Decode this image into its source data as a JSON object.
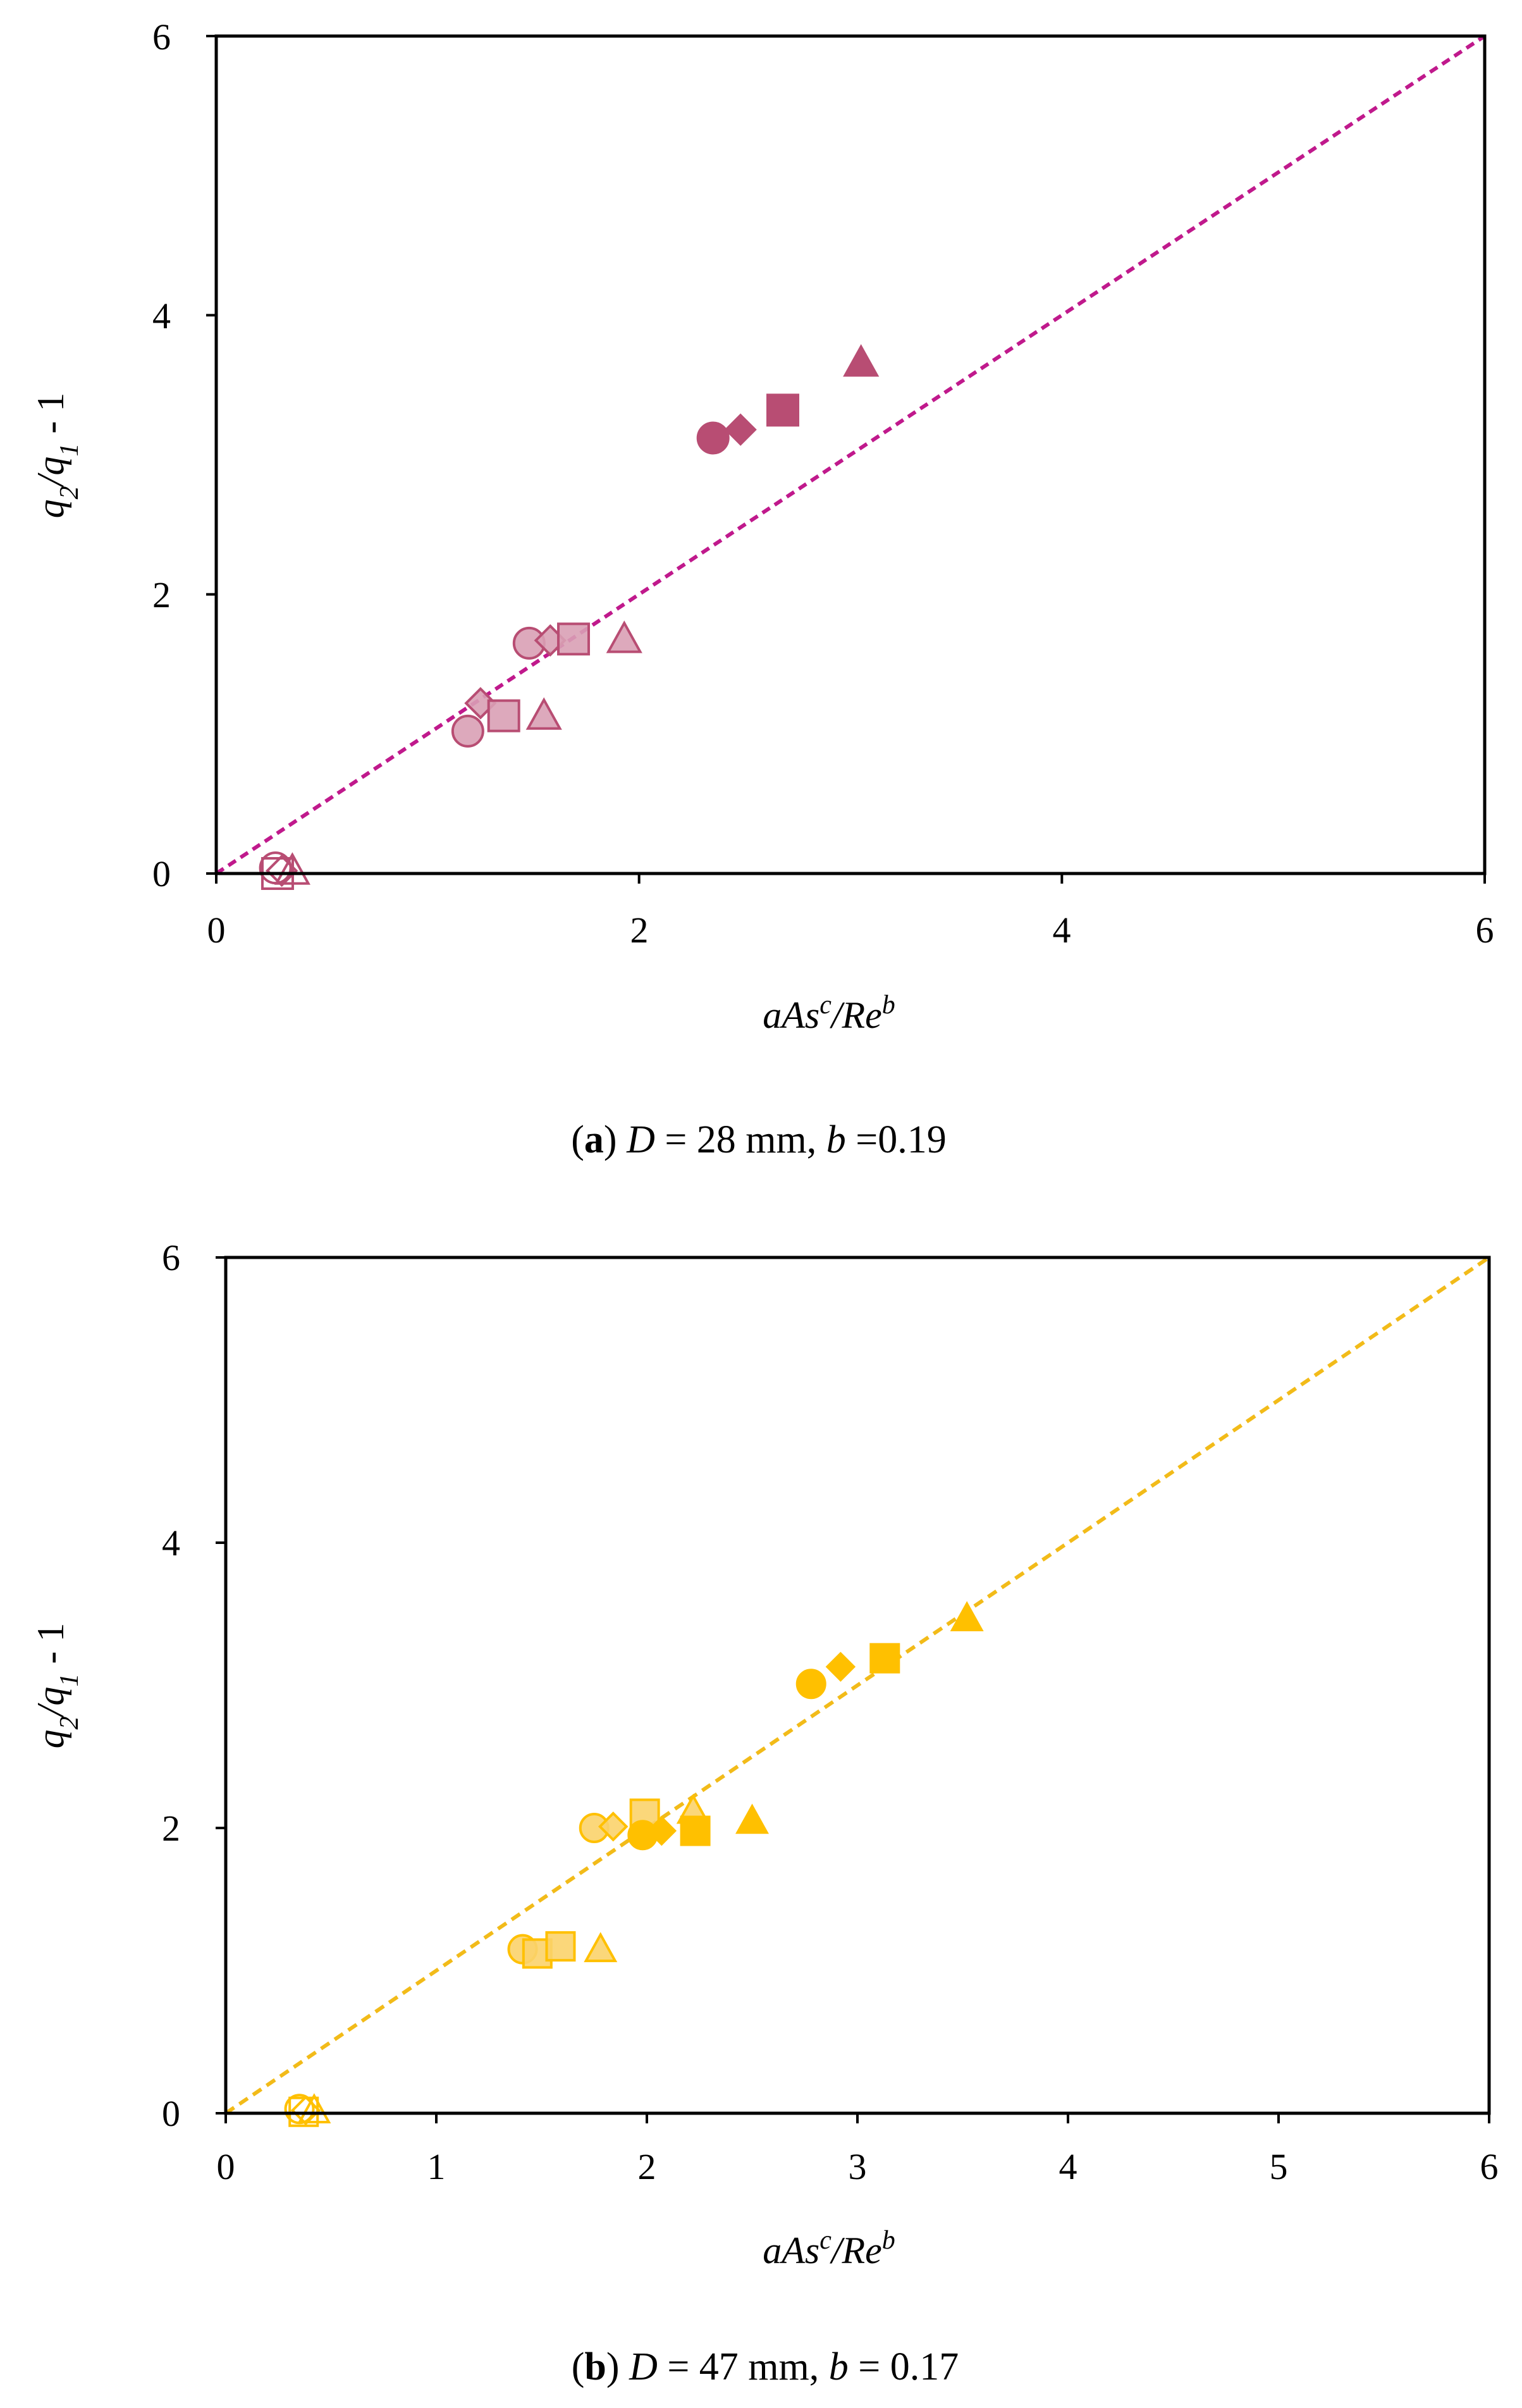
{
  "chart_data": [
    {
      "type": "scatter",
      "panel": "a",
      "caption": {
        "letter": "a",
        "d_value": "= 28 mm,",
        "b_value": "=0.19"
      },
      "xlabel": "aAs^c/Re^b",
      "ylabel": "q2/q1 - 1",
      "xlim": [
        0,
        6
      ],
      "ylim": [
        0,
        6
      ],
      "xticks": [
        "0",
        "2",
        "4",
        "6"
      ],
      "yticks": [
        "0",
        "2",
        "4",
        "6"
      ],
      "color_dark": "#b84d73",
      "color_light": "#d9a0b5",
      "fit_line": {
        "x": [
          0,
          6
        ],
        "y": [
          0,
          6
        ],
        "style": "dashed",
        "color": "#c0198c"
      },
      "series": [
        {
          "name": "hollow",
          "fill": "none",
          "points": [
            {
              "marker": "circle",
              "x": 0.28,
              "y": 0.04
            },
            {
              "marker": "square",
              "x": 0.29,
              "y": 0.0
            },
            {
              "marker": "diamond",
              "x": 0.31,
              "y": 0.02
            },
            {
              "marker": "triangle",
              "x": 0.36,
              "y": 0.02
            }
          ]
        },
        {
          "name": "light",
          "fill": "light",
          "points": [
            {
              "marker": "circle",
              "x": 1.19,
              "y": 1.02
            },
            {
              "marker": "diamond",
              "x": 1.25,
              "y": 1.22
            },
            {
              "marker": "square",
              "x": 1.36,
              "y": 1.13
            },
            {
              "marker": "triangle",
              "x": 1.55,
              "y": 1.13
            }
          ]
        },
        {
          "name": "medium",
          "fill": "light",
          "points": [
            {
              "marker": "circle",
              "x": 1.48,
              "y": 1.65
            },
            {
              "marker": "diamond",
              "x": 1.58,
              "y": 1.67
            },
            {
              "marker": "square",
              "x": 1.69,
              "y": 1.68
            },
            {
              "marker": "triangle",
              "x": 1.93,
              "y": 1.68
            }
          ]
        },
        {
          "name": "solid",
          "fill": "dark",
          "points": [
            {
              "marker": "circle",
              "x": 2.35,
              "y": 3.12
            },
            {
              "marker": "diamond",
              "x": 2.48,
              "y": 3.18
            },
            {
              "marker": "square",
              "x": 2.68,
              "y": 3.32
            },
            {
              "marker": "triangle",
              "x": 3.05,
              "y": 3.66
            }
          ]
        }
      ]
    },
    {
      "type": "scatter",
      "panel": "b",
      "caption": {
        "letter": "b",
        "d_value": "= 47 mm,",
        "b_value": "= 0.17"
      },
      "xlabel": "aAs^c/Re^b",
      "ylabel": "q2/q1 - 1",
      "xlim": [
        0,
        6
      ],
      "ylim": [
        0,
        6
      ],
      "xticks": [
        "0",
        "1",
        "2",
        "3",
        "4",
        "5",
        "6"
      ],
      "yticks": [
        "0",
        "2",
        "4",
        "6"
      ],
      "color_dark": "#ffc000",
      "color_light": "#fbd36b",
      "fit_line": {
        "x": [
          0,
          6
        ],
        "y": [
          0,
          6
        ],
        "style": "dashed",
        "color": "#f2bb19"
      },
      "series": [
        {
          "name": "hollow",
          "fill": "none",
          "points": [
            {
              "marker": "circle",
              "x": 0.35,
              "y": 0.03
            },
            {
              "marker": "square",
              "x": 0.37,
              "y": 0.01
            },
            {
              "marker": "diamond",
              "x": 0.38,
              "y": 0.02
            },
            {
              "marker": "triangle",
              "x": 0.42,
              "y": 0.02
            }
          ]
        },
        {
          "name": "light",
          "fill": "light",
          "points": [
            {
              "marker": "circle",
              "x": 1.41,
              "y": 1.15
            },
            {
              "marker": "square",
              "x": 1.48,
              "y": 1.12
            },
            {
              "marker": "square",
              "x": 1.59,
              "y": 1.17
            },
            {
              "marker": "triangle",
              "x": 1.78,
              "y": 1.15
            }
          ]
        },
        {
          "name": "medium",
          "fill": "light",
          "points": [
            {
              "marker": "circle",
              "x": 1.75,
              "y": 2.0
            },
            {
              "marker": "diamond",
              "x": 1.84,
              "y": 2.01
            },
            {
              "marker": "square",
              "x": 1.99,
              "y": 2.1
            },
            {
              "marker": "triangle",
              "x": 2.22,
              "y": 2.12
            }
          ]
        },
        {
          "name": "solid",
          "fill": "dark",
          "points": [
            {
              "marker": "circle",
              "x": 1.98,
              "y": 1.95
            },
            {
              "marker": "diamond",
              "x": 2.07,
              "y": 1.98
            },
            {
              "marker": "square",
              "x": 2.23,
              "y": 1.98
            },
            {
              "marker": "triangle",
              "x": 2.5,
              "y": 2.05
            },
            {
              "marker": "circle",
              "x": 2.78,
              "y": 3.01
            },
            {
              "marker": "diamond",
              "x": 2.92,
              "y": 3.13
            },
            {
              "marker": "square",
              "x": 3.13,
              "y": 3.19
            },
            {
              "marker": "triangle",
              "x": 3.52,
              "y": 3.47
            }
          ]
        }
      ]
    }
  ]
}
